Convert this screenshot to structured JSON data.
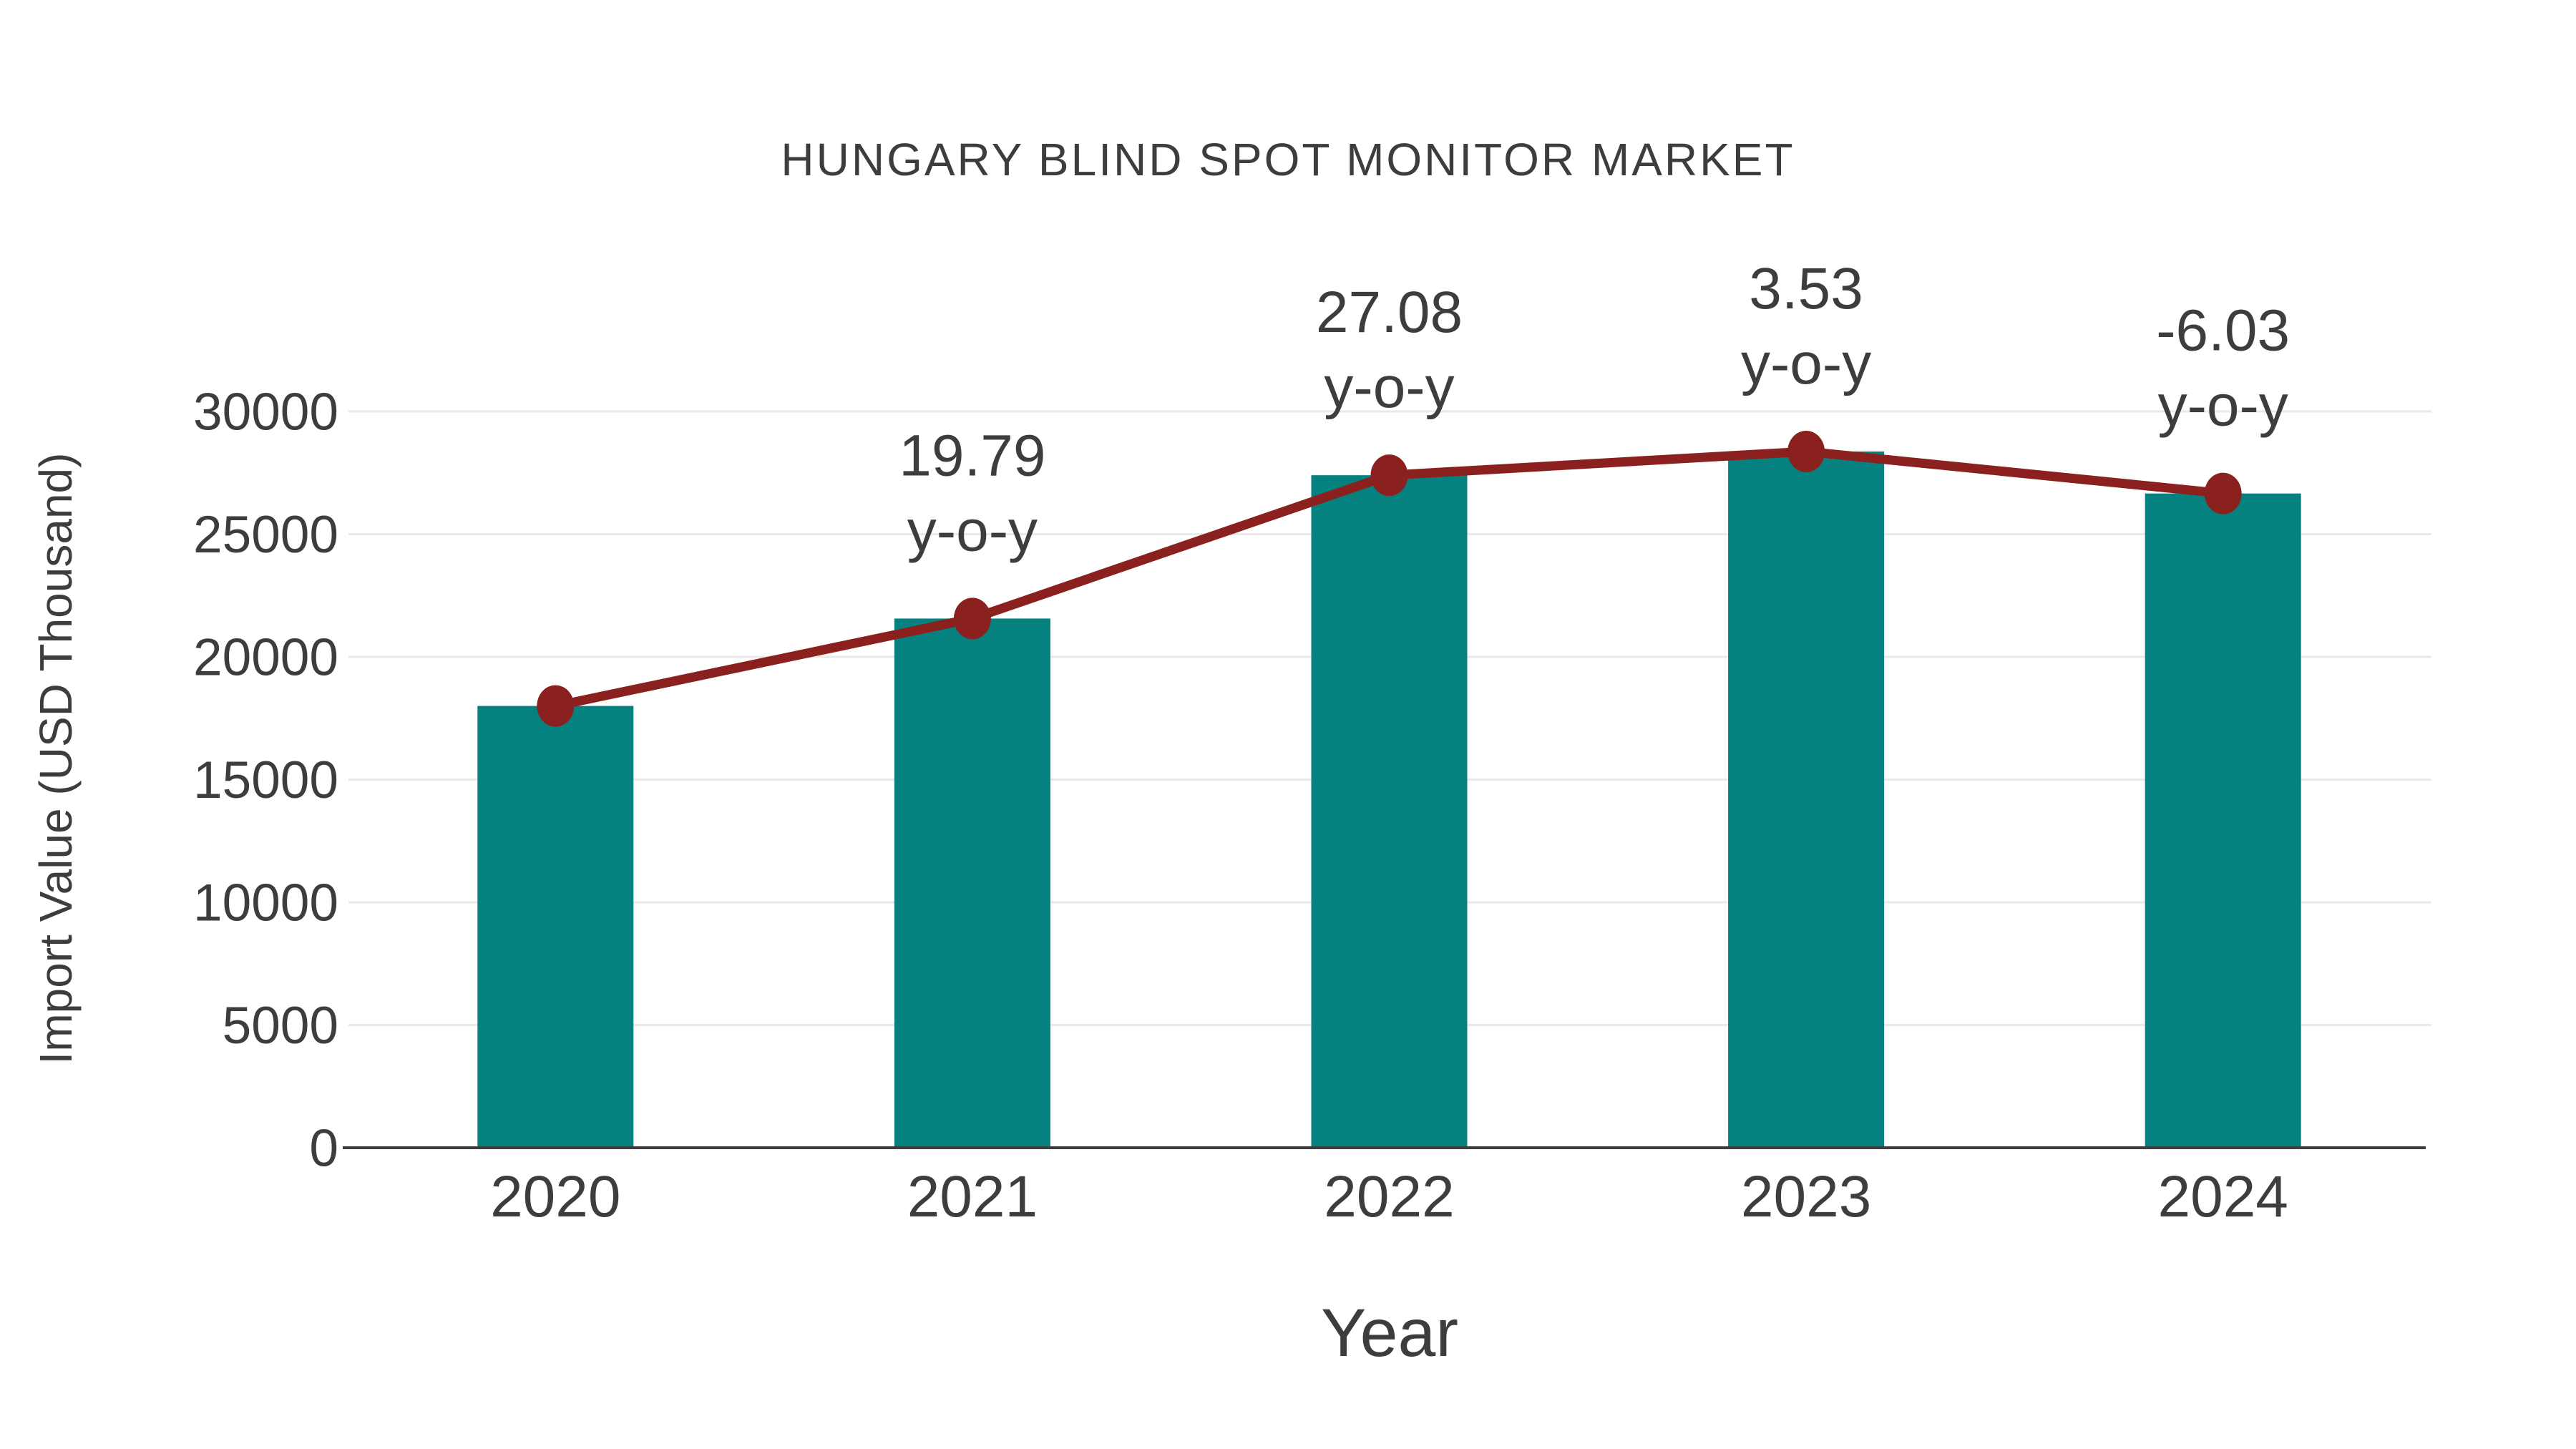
{
  "chart_data": {
    "type": "bar",
    "title": "HUNGARY BLIND SPOT MONITOR MARKET",
    "xlabel": "Year",
    "ylabel": "Import Value (USD Thousand)",
    "categories": [
      "2020",
      "2021",
      "2022",
      "2023",
      "2024"
    ],
    "series": [
      {
        "name": "Import Value",
        "type": "bar",
        "values": [
          18000,
          21562,
          27401,
          28368,
          26657
        ]
      },
      {
        "name": "Trend",
        "type": "line",
        "values": [
          18000,
          21562,
          27401,
          28368,
          26657
        ]
      }
    ],
    "annotations": [
      {
        "category": "2021",
        "line1": "19.79",
        "line2": "y-o-y"
      },
      {
        "category": "2022",
        "line1": "27.08",
        "line2": "y-o-y"
      },
      {
        "category": "2023",
        "line1": "3.53",
        "line2": "y-o-y"
      },
      {
        "category": "2024",
        "line1": "-6.03",
        "line2": "y-o-y"
      }
    ],
    "ylim": [
      0,
      30000
    ],
    "yticks": [
      0,
      5000,
      10000,
      15000,
      20000,
      25000,
      30000
    ],
    "grid": true,
    "legend": false,
    "colors": {
      "bar": "#058280",
      "line": "#8A211E",
      "marker": "#8A211E",
      "gridline": "#e9e9e9",
      "axis": "#3D3D3D",
      "text": "#3D3D3D"
    }
  }
}
